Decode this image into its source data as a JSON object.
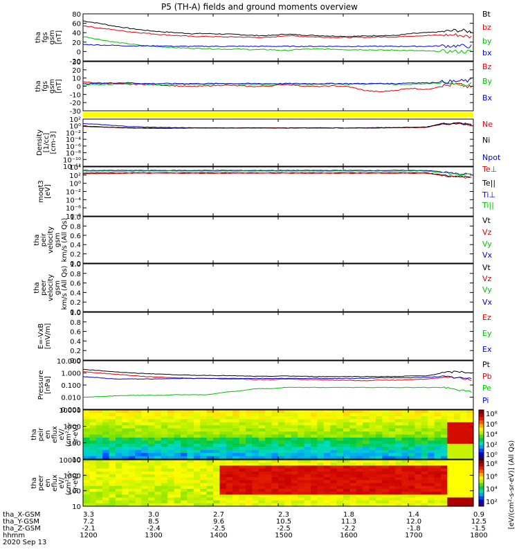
{
  "chart_data": {
    "type": "line",
    "title": "P5 (TH-A) fields and ground moments overview",
    "colors": {
      "black": "#000000",
      "red": "#e00000",
      "green": "#00c000",
      "blue": "#0000d0",
      "yellow": "#ffff00"
    },
    "panels": [
      {
        "ylabel": [
          "tha",
          "fgs",
          "gsm",
          "[nT]"
        ],
        "ylim": [
          -20,
          80
        ],
        "ticks": [
          "80",
          "60",
          "40",
          "20",
          "0",
          "-20"
        ],
        "legend": [
          {
            "text": "Bt",
            "color": "black"
          },
          {
            "text": "bz",
            "color": "red"
          },
          {
            "text": "by",
            "color": "green"
          },
          {
            "text": "bx",
            "color": "blue"
          }
        ],
        "series": [
          {
            "color": "black",
            "values": [
              65,
              60,
              54,
              49,
              45,
              42,
              40,
              38,
              38,
              37,
              36,
              34,
              34,
              37,
              35,
              34,
              33,
              32,
              33,
              34,
              34,
              38,
              40,
              42,
              45,
              42
            ]
          },
          {
            "color": "red",
            "values": [
              55,
              50,
              46,
              42,
              39,
              36,
              34,
              32,
              32,
              31,
              31,
              30,
              30,
              34,
              32,
              31,
              30,
              30,
              30,
              31,
              31,
              33,
              34,
              35,
              35,
              30
            ]
          },
          {
            "color": "green",
            "values": [
              32,
              26,
              20,
              16,
              12,
              10,
              8,
              7,
              6,
              5,
              5,
              4,
              4,
              2,
              5,
              5,
              5,
              4,
              4,
              3,
              3,
              2,
              1,
              0,
              0,
              0
            ]
          },
          {
            "color": "blue",
            "values": [
              15,
              14,
              13,
              12,
              12,
              12,
              11,
              11,
              11,
              11,
              11,
              11,
              11,
              11,
              11,
              11,
              11,
              11,
              11,
              11,
              11,
              11,
              11,
              12,
              12,
              11
            ]
          }
        ]
      },
      {
        "ylabel": [
          "tha",
          "fgs",
          "gsm",
          "[nT]"
        ],
        "ylim": [
          -35,
          30
        ],
        "ticks": [
          "30",
          "20",
          "10",
          "0",
          "-10",
          "-20",
          "-30"
        ],
        "legend": [
          {
            "text": "Bz",
            "color": "red"
          },
          {
            "text": "By",
            "color": "green"
          },
          {
            "text": "Bx",
            "color": "blue"
          }
        ],
        "series": [
          {
            "color": "red",
            "values": [
              3,
              2,
              1,
              0,
              0,
              -1,
              -2,
              -3,
              -2,
              -1,
              -2,
              -3,
              -2,
              0,
              -2,
              -3,
              -2,
              -3,
              -8,
              -10,
              -8,
              -5,
              -7,
              -2,
              0,
              -5
            ]
          },
          {
            "color": "green",
            "values": [
              -1,
              0,
              0,
              1,
              0,
              -1,
              0,
              0,
              0,
              1,
              0,
              0,
              -1,
              1,
              0,
              0,
              1,
              0,
              0,
              1,
              0,
              0,
              1,
              2,
              0,
              1
            ]
          },
          {
            "color": "blue",
            "values": [
              1,
              1,
              2,
              2,
              1,
              1,
              1,
              1,
              1,
              1,
              1,
              1,
              1,
              1,
              1,
              1,
              1,
              1,
              1,
              1,
              1,
              2,
              2,
              3,
              4,
              5
            ]
          }
        ]
      },
      {
        "ylabel": [
          "Density",
          "[1/cc]",
          "[cm-3]"
        ],
        "yscale": "log",
        "ylim": [
          -13,
          3
        ],
        "ticks": [
          "10²",
          "10⁰",
          "10⁻²",
          "10⁻⁴",
          "10⁻⁶",
          "10⁻⁸",
          "10⁻¹⁰",
          "10⁻¹²"
        ],
        "legend": [
          {
            "text": "Ne",
            "color": "red"
          },
          {
            "text": "Ni",
            "color": "black"
          },
          {
            "text": "Npot",
            "color": "blue"
          }
        ],
        "series": [
          {
            "color": "blue",
            "values": [
              1.5,
              1.2,
              0.8,
              0.5,
              0.3,
              0.2,
              0.1,
              0.05,
              0,
              0,
              0,
              0,
              0,
              0,
              0,
              0,
              0,
              0,
              0,
              0.1,
              0.1,
              0.2,
              0.3,
              1.5,
              1.6,
              1.2
            ]
          },
          {
            "color": "red",
            "values": [
              0.5,
              0.3,
              0.1,
              0,
              -0.1,
              -0.1,
              -0.1,
              0,
              0,
              0,
              0,
              0,
              0,
              0,
              0,
              0,
              0,
              0,
              0,
              0,
              0.1,
              0.1,
              0.2,
              1.3,
              1.5,
              1.0
            ]
          },
          {
            "color": "black",
            "values": [
              0.6,
              0.4,
              0.2,
              0.05,
              -0.05,
              -0.1,
              -0.1,
              0,
              0,
              0,
              0,
              0,
              0,
              0,
              0,
              0,
              0,
              0,
              0,
              0,
              0.1,
              0.2,
              0.3,
              1.4,
              1.5,
              1.1
            ]
          }
        ]
      },
      {
        "ylabel": [
          "moqt3",
          "[eV]"
        ],
        "yscale": "log",
        "ylim": [
          -9,
          5
        ],
        "ticks": [
          "10⁴",
          "10²",
          "10⁰",
          "10⁻²",
          "10⁻⁴",
          "10⁻⁶",
          "10⁻⁸"
        ],
        "legend": [
          {
            "text": "Te⊥",
            "color": "red"
          },
          {
            "text": "Te||",
            "color": "black"
          },
          {
            "text": "Ti⊥",
            "color": "blue"
          },
          {
            "text": "Ti||",
            "color": "green"
          }
        ],
        "series": [
          {
            "color": "blue",
            "values": [
              4,
              4,
              4,
              4,
              4,
              4,
              4,
              4,
              4,
              4,
              4,
              4,
              4,
              4,
              4,
              4,
              4,
              4,
              4,
              4,
              4,
              4,
              4,
              3.6,
              3,
              3
            ]
          },
          {
            "color": "green",
            "values": [
              3.8,
              3.8,
              3.8,
              3.8,
              3.8,
              3.8,
              3.8,
              3.8,
              3.8,
              3.8,
              3.8,
              3.8,
              3.8,
              3.8,
              3.8,
              3.8,
              3.8,
              3.8,
              3.8,
              3.8,
              3.8,
              3.8,
              3.8,
              3.4,
              2.8,
              2.8
            ]
          },
          {
            "color": "black",
            "values": [
              3.2,
              3.3,
              3.3,
              3.3,
              3.3,
              3.3,
              3.3,
              3.3,
              3.3,
              3.3,
              3.3,
              3.3,
              3.3,
              3.3,
              3.3,
              3.3,
              3.3,
              3.3,
              3.3,
              3.3,
              3.3,
              3.3,
              3.3,
              2.7,
              2.2,
              2.2
            ]
          },
          {
            "color": "red",
            "values": [
              3.0,
              3.1,
              3.1,
              3.2,
              3.2,
              3.2,
              3.2,
              3.2,
              3.2,
              3.2,
              3.2,
              3.2,
              3.2,
              3.2,
              3.2,
              3.2,
              3.2,
              3.2,
              3.2,
              3.2,
              3.2,
              3.2,
              3.2,
              2.6,
              2.0,
              2.0
            ]
          }
        ]
      },
      {
        "ylabel": [
          "tha",
          "peir",
          "velocity",
          "gsm",
          "km/s (All Qs)"
        ],
        "ylim": [
          0,
          1
        ],
        "ticks": [
          "1.0",
          "0.8",
          "0.6",
          "0.4",
          "0.2",
          "0.0"
        ],
        "legend": [
          {
            "text": "Vt",
            "color": "black"
          },
          {
            "text": "Vz",
            "color": "red"
          },
          {
            "text": "Vy",
            "color": "green"
          },
          {
            "text": "Vx",
            "color": "blue"
          }
        ],
        "series": []
      },
      {
        "ylabel": [
          "tha",
          "peer",
          "velocity",
          "gsm",
          "km/s (All Qs)"
        ],
        "ylim": [
          0,
          1
        ],
        "ticks": [
          "1.0",
          "0.8",
          "0.6",
          "0.4",
          "0.2",
          "0.0"
        ],
        "legend": [
          {
            "text": "Vt",
            "color": "black"
          },
          {
            "text": "Vz",
            "color": "red"
          },
          {
            "text": "Vy",
            "color": "green"
          },
          {
            "text": "Vx",
            "color": "blue"
          }
        ],
        "series": []
      },
      {
        "ylabel": [
          "E=-VxB",
          "[mV/m]"
        ],
        "ylim": [
          0,
          1
        ],
        "ticks": [
          "1.0",
          "0.8",
          "0.6",
          "0.4",
          "0.2",
          "0.0"
        ],
        "legend": [
          {
            "text": "Ez",
            "color": "red"
          },
          {
            "text": "Ey",
            "color": "green"
          },
          {
            "text": "Ex",
            "color": "blue"
          }
        ],
        "series": []
      },
      {
        "ylabel": [
          "Pressure",
          "[nPa]"
        ],
        "yscale": "log",
        "ylim": [
          -3,
          1
        ],
        "ticks": [
          "10.000",
          "1.000",
          "0.100",
          "0.010",
          "0.001"
        ],
        "legend": [
          {
            "text": "Pt",
            "color": "black"
          },
          {
            "text": "Pb",
            "color": "red"
          },
          {
            "text": "Pe",
            "color": "green"
          },
          {
            "text": "Pi",
            "color": "blue"
          }
        ],
        "series": [
          {
            "color": "black",
            "values": [
              0.3,
              0.2,
              0.1,
              0,
              -0.05,
              -0.1,
              -0.15,
              -0.2,
              -0.2,
              -0.22,
              -0.25,
              -0.28,
              -0.28,
              -0.25,
              -0.28,
              -0.3,
              -0.3,
              -0.3,
              -0.3,
              -0.3,
              -0.3,
              -0.25,
              -0.25,
              0,
              0.1,
              0.0
            ]
          },
          {
            "color": "red",
            "values": [
              0.1,
              0,
              -0.1,
              -0.2,
              -0.3,
              -0.35,
              -0.4,
              -0.45,
              -0.45,
              -0.5,
              -0.5,
              -0.55,
              -0.55,
              -0.5,
              -0.55,
              -0.55,
              -0.6,
              -0.6,
              -0.65,
              -0.6,
              -0.6,
              -0.55,
              -0.5,
              -0.4,
              -0.4,
              -0.6
            ]
          },
          {
            "color": "blue",
            "values": [
              -0.3,
              -0.4,
              -0.5,
              -0.5,
              -0.5,
              -0.5,
              -0.45,
              -0.45,
              -0.45,
              -0.45,
              -0.45,
              -0.45,
              -0.45,
              -0.45,
              -0.45,
              -0.45,
              -0.45,
              -0.45,
              -0.45,
              -0.4,
              -0.4,
              -0.4,
              -0.35,
              -0.3,
              -0.4,
              -0.5
            ]
          },
          {
            "color": "green",
            "values": [
              -2.0,
              -1.95,
              -1.9,
              -1.85,
              -1.85,
              -1.85,
              -1.8,
              -1.8,
              -1.8,
              -1.6,
              -1.5,
              -1.3,
              -1.3,
              -1.2,
              -1.2,
              -1.2,
              -1.2,
              -1.2,
              -1.2,
              -1.2,
              -1.2,
              -1.2,
              -1.2,
              -1.2,
              -1.4,
              -1.6
            ]
          }
        ]
      },
      {
        "ylabel": [
          "tha",
          "peir",
          "en",
          "eflux",
          "eV/",
          "(cm²-s-",
          "sr-eV)"
        ],
        "yscale": "log",
        "ylim": [
          0.78,
          4.1
        ],
        "ticks": [
          "10000",
          "1000",
          "100",
          "10"
        ],
        "kind": "spectrogram",
        "ion": true
      },
      {
        "ylabel": [
          "tha",
          "peer",
          "en",
          "eflux",
          "eV/",
          "(cm²-s-",
          "sr-eV)"
        ],
        "yscale": "log",
        "ylim": [
          0.78,
          4.1
        ],
        "ticks": [
          "10000",
          "1000",
          "100",
          "10"
        ],
        "kind": "spectrogram",
        "ion": false
      }
    ],
    "colorbars": [
      {
        "ticks": [
          "10⁸",
          "10⁶",
          "10⁴",
          "10²",
          "10⁰"
        ]
      },
      {
        "ticks": [
          "10⁸",
          "10⁶",
          "10⁴",
          "10²"
        ]
      }
    ],
    "colorbar_label": "[eV/(cm²-s-sr-eV)] (All Qs)",
    "xaxis": {
      "rows": [
        {
          "label": "tha_X-GSM",
          "values": [
            "3.3",
            "3.0",
            "2.7",
            "2.3",
            "1.8",
            "1.4",
            "0.9"
          ]
        },
        {
          "label": "tha_Y-GSM",
          "values": [
            "7.2",
            "8.5",
            "9.6",
            "10.5",
            "11.3",
            "12.0",
            "12.5"
          ]
        },
        {
          "label": "tha_Z-GSM",
          "values": [
            "-2.1",
            "-2.4",
            "-2.5",
            "-2.5",
            "-2.2",
            "-1.8",
            "-1.5"
          ]
        },
        {
          "label": "hhmm",
          "values": [
            "1200",
            "1300",
            "1400",
            "1500",
            "1600",
            "1700",
            "1800"
          ]
        }
      ],
      "date": "2020 Sep 13",
      "x": [
        "1200",
        "1300",
        "1400",
        "1500",
        "1600",
        "1700",
        "1800"
      ]
    }
  }
}
